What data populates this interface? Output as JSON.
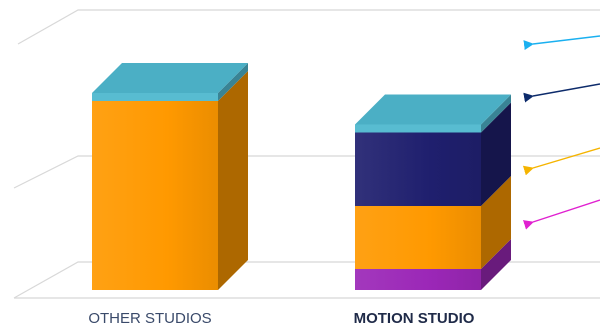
{
  "chart_data": {
    "type": "bar",
    "stacked": true,
    "title": "",
    "xlabel": "",
    "ylabel": "",
    "categories": [
      "OTHER STUDIOS",
      "MOTION STUDIO"
    ],
    "ylim": [
      0,
      100
    ],
    "grid": true,
    "legend": "none",
    "series": [
      {
        "values": [
          0,
          10
        ],
        "color": "#9b27b7"
      },
      {
        "values": [
          90,
          30
        ],
        "color": "#ff9900"
      },
      {
        "values": [
          0,
          35
        ],
        "color": "#1f1f6e"
      },
      {
        "values": [
          0,
          0
        ],
        "color": "#4fb8cf"
      }
    ],
    "cap_color": "#4fb8cf",
    "annotation_arrow_colors": [
      "#1ab0f0",
      "#0d2b6b",
      "#f5b400",
      "#e020d0"
    ],
    "category_label_bold": [
      false,
      true
    ]
  }
}
